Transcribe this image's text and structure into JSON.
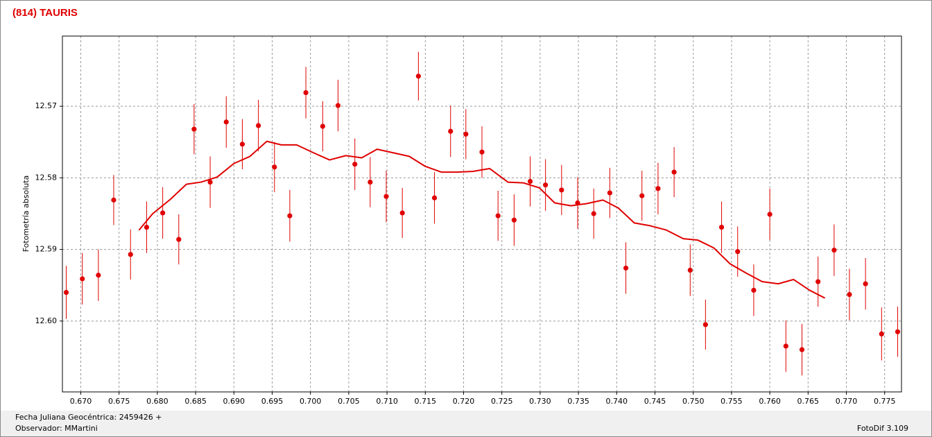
{
  "chart_data": {
    "type": "errorbar",
    "title": "(814) TAURIS",
    "y_label": "Fotometría absoluta",
    "x_label": "Fecha Juliana Geocéntrica: 2459426 +",
    "xlim": [
      0.6676,
      0.7772
    ],
    "ylim": [
      12.6099,
      12.5602
    ],
    "grid": true,
    "xticks": [
      {
        "value": 0.67,
        "label": "0.670"
      },
      0.675,
      {
        "value": 0.68,
        "label": "0.680"
      },
      0.685,
      {
        "value": 0.69,
        "label": "0.690"
      },
      0.695,
      {
        "value": 0.7,
        "label": "0.700"
      },
      0.705,
      {
        "value": 0.71,
        "label": "0.710"
      },
      0.715,
      {
        "value": 0.72,
        "label": "0.720"
      },
      0.725,
      {
        "value": 0.73,
        "label": "0.730"
      },
      0.735,
      {
        "value": 0.74,
        "label": "0.740"
      },
      0.745,
      {
        "value": 0.75,
        "label": "0.750"
      },
      0.755,
      {
        "value": 0.76,
        "label": "0.760"
      },
      0.765,
      {
        "value": 0.77,
        "label": "0.770"
      },
      0.775
    ],
    "yticks": [
      12.57,
      12.58,
      12.59,
      {
        "value": 12.6,
        "label": "12.60"
      }
    ],
    "series": [
      {
        "type": "errorbar",
        "color": "#e00000",
        "x": [
          0.6681,
          0.6702,
          0.6723,
          0.6743,
          0.6765,
          0.6786,
          0.6807,
          0.6828,
          0.6848,
          0.6869,
          0.689,
          0.6911,
          0.6932,
          0.6953,
          0.6973,
          0.6994,
          0.7016,
          0.7036,
          0.7058,
          0.7078,
          0.7099,
          0.712,
          0.7141,
          0.7162,
          0.7183,
          0.7203,
          0.7224,
          0.7245,
          0.7266,
          0.7287,
          0.7307,
          0.7328,
          0.7349,
          0.737,
          0.7391,
          0.7412,
          0.7433,
          0.7454,
          0.7475,
          0.7496,
          0.7516,
          0.7537,
          0.7558,
          0.7579,
          0.76,
          0.7621,
          0.7642,
          0.7663,
          0.7684,
          0.7704,
          0.7725,
          0.7746,
          0.7767
        ],
        "values": [
          12.596,
          12.5941,
          12.5936,
          12.5831,
          12.5907,
          12.5869,
          12.5849,
          12.5886,
          12.5732,
          12.5806,
          12.5722,
          12.5753,
          12.5727,
          12.5785,
          12.5853,
          12.5681,
          12.5728,
          12.5699,
          12.5781,
          12.5806,
          12.5826,
          12.5849,
          12.5658,
          12.5828,
          12.5735,
          12.5739,
          12.5764,
          12.5853,
          12.5859,
          12.5805,
          12.581,
          12.5817,
          12.5835,
          12.585,
          12.5821,
          12.5926,
          12.5825,
          12.5815,
          12.5792,
          12.5929,
          12.6005,
          12.5869,
          12.5903,
          12.5957,
          12.5851,
          12.6035,
          12.604,
          12.5945,
          12.5901,
          12.5963,
          12.5948,
          12.6018,
          12.6015
        ],
        "errors": [
          0.0037,
          0.0036,
          0.0036,
          0.0035,
          0.0035,
          0.0036,
          0.0036,
          0.0035,
          0.0035,
          0.0036,
          0.0036,
          0.0035,
          0.0036,
          0.0035,
          0.0036,
          0.0036,
          0.0035,
          0.0036,
          0.0036,
          0.0035,
          0.0036,
          0.0035,
          0.0034,
          0.0036,
          0.0036,
          0.0035,
          0.0036,
          0.0035,
          0.0036,
          0.0035,
          0.0036,
          0.0035,
          0.0036,
          0.0035,
          0.0035,
          0.0036,
          0.0035,
          0.0036,
          0.0035,
          0.0036,
          0.0035,
          0.0036,
          0.0035,
          0.0036,
          0.0036,
          0.0036,
          0.0036,
          0.0035,
          0.0036,
          0.0036,
          0.0036,
          0.0037,
          0.0035
        ]
      },
      {
        "type": "line",
        "color": "#e00000",
        "x": [
          0.6776,
          0.6794,
          0.6817,
          0.6838,
          0.6857,
          0.6878,
          0.69,
          0.6921,
          0.6943,
          0.6962,
          0.6982,
          0.7004,
          0.7025,
          0.7046,
          0.7067,
          0.7087,
          0.7108,
          0.7129,
          0.715,
          0.7171,
          0.7191,
          0.7212,
          0.7234,
          0.7258,
          0.7278,
          0.7299,
          0.7319,
          0.734,
          0.7361,
          0.7382,
          0.7402,
          0.7423,
          0.7444,
          0.7465,
          0.7487,
          0.7506,
          0.7527,
          0.7548,
          0.7569,
          0.759,
          0.7611,
          0.7631,
          0.7652,
          0.7672
        ],
        "values": [
          12.5873,
          12.585,
          12.583,
          12.5809,
          12.5806,
          12.5799,
          12.578,
          12.577,
          12.5749,
          12.5754,
          12.5754,
          12.5765,
          12.5775,
          12.5769,
          12.5772,
          12.576,
          12.5765,
          12.577,
          12.5784,
          12.5792,
          12.5792,
          12.5791,
          12.5787,
          12.5806,
          12.5807,
          12.5814,
          12.5835,
          12.5839,
          12.5836,
          12.5831,
          12.5842,
          12.5863,
          12.5867,
          12.5873,
          12.5885,
          12.5887,
          12.5898,
          12.592,
          12.5933,
          12.5945,
          12.5948,
          12.5942,
          12.5957,
          12.5968
        ]
      }
    ]
  },
  "footer": {
    "observer": "Observador: MMartini",
    "software": "FotoDif 3.109"
  }
}
